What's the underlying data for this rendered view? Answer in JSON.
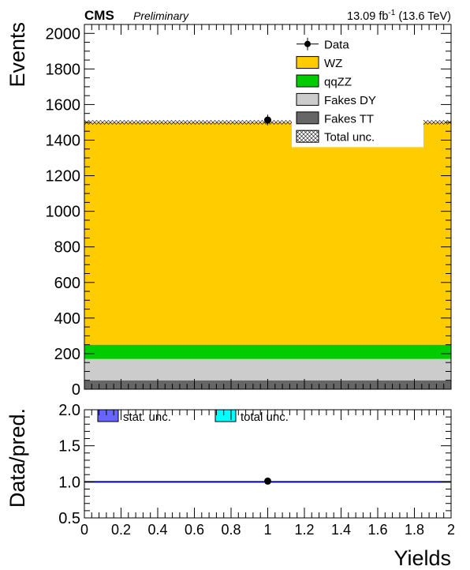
{
  "header": {
    "experiment": "CMS",
    "status": "Preliminary",
    "lumi_main": "13.09 fb",
    "lumi_exp": "-1",
    "lumi_energy": " (13.6 TeV)"
  },
  "colors": {
    "wz": "#ffcc00",
    "qqzz": "#00cc00",
    "fakes_dy": "#cccccc",
    "fakes_tt": "#666666",
    "stat_unc": "#6666ff",
    "total_unc": "#00ffff",
    "ratio_line": "#000099"
  },
  "chart_data": [
    {
      "type": "bar",
      "stacked": true,
      "ylabel": "Events",
      "xlim": [
        0,
        2
      ],
      "ylim": [
        0,
        2050
      ],
      "yticks": [
        "0",
        "200",
        "400",
        "600",
        "800",
        "1000",
        "1200",
        "1400",
        "1600",
        "1800",
        "2000"
      ],
      "bins": [
        [
          0,
          2
        ]
      ],
      "series": [
        {
          "name": "Fakes TT",
          "values": [
            50
          ]
        },
        {
          "name": "Fakes DY",
          "values": [
            120
          ]
        },
        {
          "name": "qqZZ",
          "values": [
            80
          ]
        },
        {
          "name": "WZ",
          "values": [
            1250
          ]
        }
      ],
      "total": [
        1500
      ],
      "total_unc": [
        12
      ],
      "data": {
        "name": "Data",
        "x": [
          1
        ],
        "y": [
          1513
        ],
        "yerr": [
          30
        ]
      },
      "legend": {
        "placement": "top-right",
        "entries": [
          "Data",
          "WZ",
          "qqZZ",
          "Fakes DY",
          "Fakes TT",
          "Total unc."
        ]
      }
    },
    {
      "type": "scatter",
      "ylabel": "Data/pred.",
      "xlabel": "Yields",
      "xlim": [
        0,
        2
      ],
      "ylim": [
        0.5,
        2.0
      ],
      "xticks": [
        "0",
        "0.2",
        "0.4",
        "0.6",
        "0.8",
        "1",
        "1.2",
        "1.4",
        "1.6",
        "1.8",
        "2"
      ],
      "yticks": [
        "0.5",
        "1.0",
        "1.5",
        "2.0"
      ],
      "reference": 1.0,
      "points": {
        "x": [
          1
        ],
        "y": [
          1.01
        ]
      },
      "legend": {
        "placement": "top-left",
        "entries": [
          "stat. unc.",
          "total unc."
        ]
      }
    }
  ]
}
